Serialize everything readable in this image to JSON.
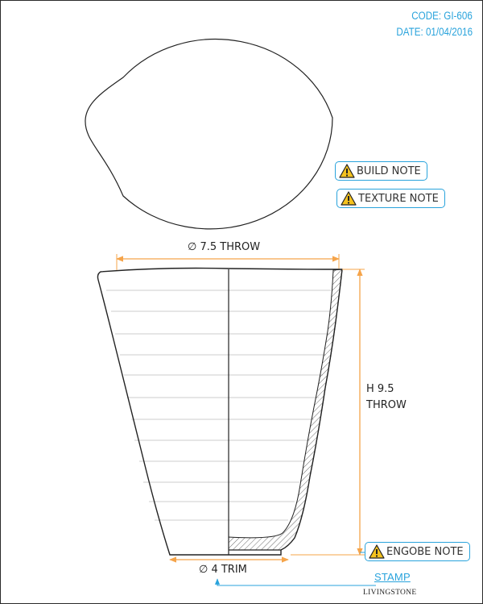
{
  "header": {
    "code": "CODE: GI-606",
    "date": "DATE: 01/04/2016"
  },
  "dimensions": {
    "rim_diameter": "∅ 7.5 THROW",
    "height_value": "H 9.5",
    "height_unit": "THROW",
    "base_diameter": "∅ 4 TRIM"
  },
  "notes": {
    "build": "BUILD NOTE",
    "texture": "TEXTURE NOTE",
    "engobe": "ENGOBE NOTE"
  },
  "stamp": {
    "label": "STAMP",
    "brand": "LIVINGSTONE"
  },
  "colors": {
    "accent": "#29a3dc",
    "dimension": "#f5a44a",
    "warning": "#f4c21f",
    "line": "#222222"
  },
  "icons": {
    "warning": "warning-triangle-icon"
  }
}
